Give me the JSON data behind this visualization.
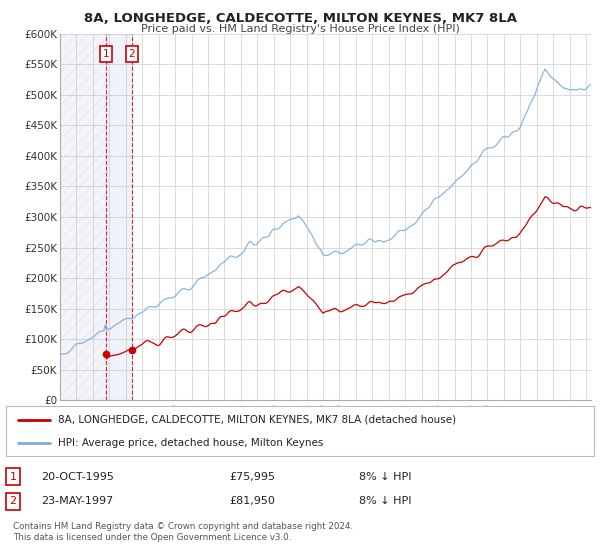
{
  "title": "8A, LONGHEDGE, CALDECOTTE, MILTON KEYNES, MK7 8LA",
  "subtitle": "Price paid vs. HM Land Registry's House Price Index (HPI)",
  "legend_label_red": "8A, LONGHEDGE, CALDECOTTE, MILTON KEYNES, MK7 8LA (detached house)",
  "legend_label_blue": "HPI: Average price, detached house, Milton Keynes",
  "table_row1": [
    "1",
    "20-OCT-1995",
    "£75,995",
    "8% ↓ HPI"
  ],
  "table_row2": [
    "2",
    "23-MAY-1997",
    "£81,950",
    "8% ↓ HPI"
  ],
  "footnote": "Contains HM Land Registry data © Crown copyright and database right 2024.\nThis data is licensed under the Open Government Licence v3.0.",
  "red_color": "#cc0000",
  "blue_color": "#7aadde",
  "hatch_color": "#ccddee",
  "grid_color": "#cccccc",
  "background_color": "#ffffff",
  "point1_x": 1995.79,
  "point1_y": 75995,
  "point2_x": 1997.37,
  "point2_y": 81950,
  "vline1_x": 1995.79,
  "vline2_x": 1997.37,
  "ylim": [
    0,
    600000
  ],
  "xlim": [
    1993.0,
    2025.3
  ],
  "yticks": [
    0,
    50000,
    100000,
    150000,
    200000,
    250000,
    300000,
    350000,
    400000,
    450000,
    500000,
    550000,
    600000
  ],
  "ytick_labels": [
    "£0",
    "£50K",
    "£100K",
    "£150K",
    "£200K",
    "£250K",
    "£300K",
    "£350K",
    "£400K",
    "£450K",
    "£500K",
    "£550K",
    "£600K"
  ],
  "xticks": [
    1993,
    1994,
    1995,
    1996,
    1997,
    1998,
    1999,
    2000,
    2001,
    2002,
    2003,
    2004,
    2005,
    2006,
    2007,
    2008,
    2009,
    2010,
    2011,
    2012,
    2013,
    2014,
    2015,
    2016,
    2017,
    2018,
    2019,
    2020,
    2021,
    2022,
    2023,
    2024,
    2025
  ]
}
